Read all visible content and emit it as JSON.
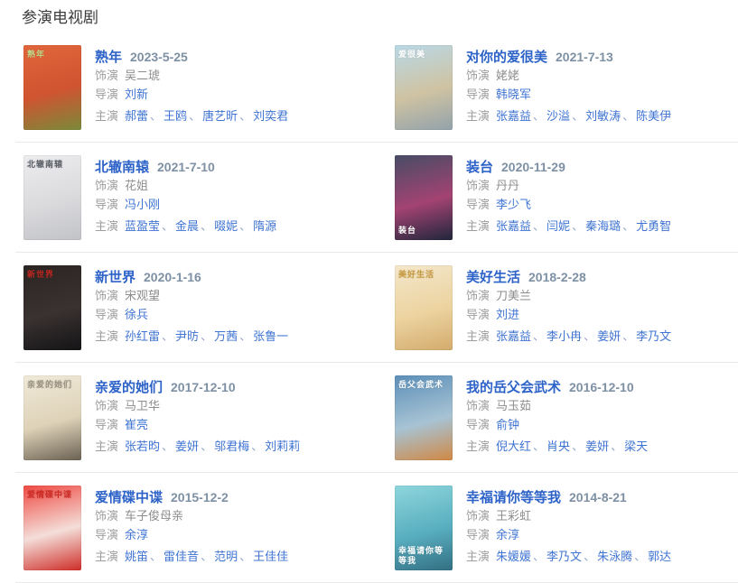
{
  "page": {
    "heading": "参演电视剧"
  },
  "labels": {
    "role": "饰演",
    "director": "导演",
    "starring": "主演",
    "separator": "、"
  },
  "colors": {
    "heading": "#3c3c3c",
    "title_link": "#2d63c8",
    "link": "#3f74d2",
    "date": "#7e90a4",
    "label": "#9e9e9e",
    "role_value": "#8d8d8d",
    "separator": "#97a8c6",
    "divider": "#e9e9e9"
  },
  "entries": [
    {
      "title": "熟年",
      "date": "2023-5-25",
      "role": "吴二琥",
      "directors": [
        "刘新"
      ],
      "starring": [
        "郝蕾",
        "王鸥",
        "唐艺昕",
        "刘奕君"
      ],
      "poster": {
        "colors": [
          "#e2663b",
          "#cf5430",
          "#7a8a3a"
        ],
        "text": "熟年",
        "text_color": "#bcd98a",
        "text_pos": "top"
      }
    },
    {
      "title": "对你的爱很美",
      "date": "2021-7-13",
      "role": "姥姥",
      "directors": [
        "韩晓军"
      ],
      "starring": [
        "张嘉益",
        "沙溢",
        "刘敏涛",
        "陈美伊"
      ],
      "poster": {
        "colors": [
          "#b9d8e7",
          "#cfc3a2",
          "#93a2ab"
        ],
        "text": "爱很美",
        "text_color": "#ffffff",
        "text_pos": "top"
      }
    },
    {
      "title": "北辙南辕",
      "date": "2021-7-10",
      "role": "花姐",
      "directors": [
        "冯小刚"
      ],
      "starring": [
        "蓝盈莹",
        "金晨",
        "啜妮",
        "隋源"
      ],
      "poster": {
        "colors": [
          "#ededef",
          "#dadadd",
          "#c2c3c7"
        ],
        "text": "北辙南辕",
        "text_color": "#5b6068",
        "text_pos": "top"
      }
    },
    {
      "title": "装台",
      "date": "2020-11-29",
      "role": "丹丹",
      "directors": [
        "李少飞"
      ],
      "starring": [
        "张嘉益",
        "闫妮",
        "秦海璐",
        "尤勇智"
      ],
      "poster": {
        "colors": [
          "#474c66",
          "#a34372",
          "#20263c"
        ],
        "text": "装台",
        "text_color": "#ffffff",
        "text_pos": "bottom"
      }
    },
    {
      "title": "新世界",
      "date": "2020-1-16",
      "role": "宋观望",
      "directors": [
        "徐兵"
      ],
      "starring": [
        "孙红雷",
        "尹昉",
        "万茜",
        "张鲁一"
      ],
      "poster": {
        "colors": [
          "#2a2422",
          "#3a3231",
          "#141416"
        ],
        "text": "新世界",
        "text_color": "#c0271f",
        "text_pos": "top"
      }
    },
    {
      "title": "美好生活",
      "date": "2018-2-28",
      "role": "刀美兰",
      "directors": [
        "刘进"
      ],
      "starring": [
        "张嘉益",
        "李小冉",
        "姜妍",
        "李乃文"
      ],
      "poster": {
        "colors": [
          "#f4e7cb",
          "#ecd3a0",
          "#d3ab6c"
        ],
        "text": "美好生活",
        "text_color": "#c89b3f",
        "text_pos": "top"
      }
    },
    {
      "title": "亲爱的她们",
      "date": "2017-12-10",
      "role": "马卫华",
      "directors": [
        "崔亮"
      ],
      "starring": [
        "张若昀",
        "姜妍",
        "邬君梅",
        "刘莉莉"
      ],
      "poster": {
        "colors": [
          "#f0ead9",
          "#ded2b8",
          "#6b6152"
        ],
        "text": "亲爱的她们",
        "text_color": "#9a9080",
        "text_pos": "top"
      }
    },
    {
      "title": "我的岳父会武术",
      "date": "2016-12-10",
      "role": "马玉茹",
      "directors": [
        "俞钟"
      ],
      "starring": [
        "倪大红",
        "肖央",
        "姜妍",
        "梁天"
      ],
      "poster": {
        "colors": [
          "#5c8fb8",
          "#a7c3d4",
          "#d08844"
        ],
        "text": "岳父会武术",
        "text_color": "#ffffff",
        "text_pos": "top"
      }
    },
    {
      "title": "爱情碟中谍",
      "date": "2015-12-2",
      "role": "车子俊母亲",
      "directors": [
        "余淳"
      ],
      "starring": [
        "姚笛",
        "雷佳音",
        "范明",
        "王佳佳"
      ],
      "poster": {
        "colors": [
          "#ef4a42",
          "#f4ded9",
          "#cf2d28"
        ],
        "text": "爱情碟中谍",
        "text_color": "#cf2a24",
        "text_pos": "top"
      }
    },
    {
      "title": "幸福请你等等我",
      "date": "2014-8-21",
      "role": "王彩虹",
      "directors": [
        "余淳"
      ],
      "starring": [
        "朱媛媛",
        "李乃文",
        "朱泳腾",
        "郭达"
      ],
      "poster": {
        "colors": [
          "#8ed6dc",
          "#58aebf",
          "#336f83"
        ],
        "text": "幸福请你等等我",
        "text_color": "#ffffff",
        "text_pos": "bottom"
      }
    }
  ]
}
